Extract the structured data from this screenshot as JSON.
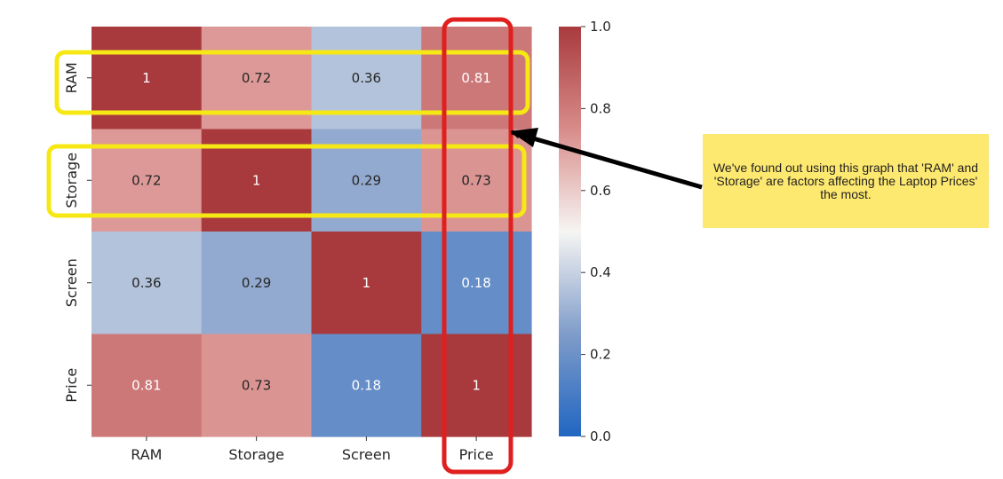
{
  "chart_data": {
    "type": "heatmap",
    "title": "",
    "xlabel": "",
    "ylabel": "",
    "x_categories": [
      "RAM",
      "Storage",
      "Screen",
      "Price"
    ],
    "y_categories": [
      "RAM",
      "Storage",
      "Screen",
      "Price"
    ],
    "values": [
      [
        1.0,
        0.72,
        0.36,
        0.81
      ],
      [
        0.72,
        1.0,
        0.29,
        0.73
      ],
      [
        0.36,
        0.29,
        1.0,
        0.18
      ],
      [
        0.81,
        0.73,
        0.18,
        1.0
      ]
    ],
    "cell_labels": [
      [
        "1",
        "0.72",
        "0.36",
        "0.81"
      ],
      [
        "0.72",
        "1",
        "0.29",
        "0.73"
      ],
      [
        "0.36",
        "0.29",
        "1",
        "0.18"
      ],
      [
        "0.81",
        "0.73",
        "0.18",
        "1"
      ]
    ],
    "colormap": "vlag",
    "colorbar": {
      "range": [
        0.0,
        1.0
      ],
      "ticks": [
        0.0,
        0.2,
        0.4,
        0.6,
        0.8,
        1.0
      ],
      "tick_labels": [
        "0.0",
        "0.2",
        "0.4",
        "0.6",
        "0.8",
        "1.0"
      ]
    },
    "colors": {
      "low": "#2166c2",
      "mid": "#f6f5f3",
      "high": "#a83a3e",
      "highlight_rows": "#f5e814",
      "highlight_column": "#e01f1f",
      "arrow": "#000000"
    },
    "annotations": {
      "highlighted_rows": [
        "RAM",
        "Storage"
      ],
      "highlighted_column": "Price",
      "note_text": "We've found out using this graph that 'RAM' and 'Storage' are factors affecting the Laptop Prices' the most."
    }
  }
}
